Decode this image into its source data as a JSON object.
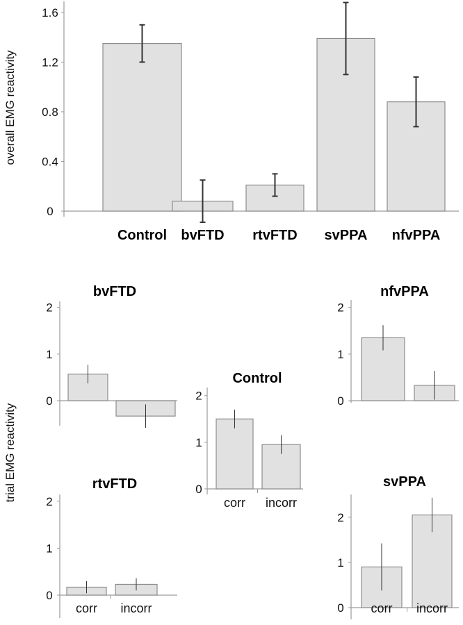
{
  "chart_data": [
    {
      "id": "overall",
      "type": "bar",
      "title": "",
      "xlabel": "",
      "ylabel": "overall EMG reactivity",
      "ylim": [
        -0.1,
        1.7
      ],
      "yticks": [
        0,
        0.4,
        0.8,
        1.2,
        1.6
      ],
      "ytick_labels": [
        "0",
        "0.4",
        "0.8",
        "1.2",
        "1.6"
      ],
      "categories": [
        "Control",
        "bvFTD",
        "rtvFTD",
        "svPPA",
        "nfvPPA"
      ],
      "values": [
        1.35,
        0.08,
        0.21,
        1.39,
        0.88
      ],
      "errors": [
        0.15,
        0.17,
        0.09,
        0.29,
        0.2
      ]
    },
    {
      "id": "bvFTD",
      "type": "bar",
      "title": "bvFTD",
      "ylim": [
        -0.55,
        2.1
      ],
      "yticks": [
        0,
        1,
        2
      ],
      "ytick_labels": [
        "0",
        "1",
        "2"
      ],
      "categories": [
        "corr",
        "incorr"
      ],
      "show_category_labels": false,
      "values": [
        0.57,
        -0.33
      ],
      "errors": [
        0.2,
        0.25
      ]
    },
    {
      "id": "Control",
      "type": "bar",
      "title": "Control",
      "ylim": [
        0,
        2.1
      ],
      "yticks": [
        0,
        1,
        2
      ],
      "ytick_labels": [
        "0",
        "1",
        "2"
      ],
      "categories": [
        "corr",
        "incorr"
      ],
      "show_category_labels": true,
      "values": [
        1.5,
        0.95
      ],
      "errors": [
        0.2,
        0.2
      ]
    },
    {
      "id": "nfvPPA",
      "type": "bar",
      "title": "nfvPPA",
      "ylim": [
        -0.05,
        2.1
      ],
      "yticks": [
        0,
        1,
        2
      ],
      "ytick_labels": [
        "0",
        "1",
        "2"
      ],
      "categories": [
        "corr",
        "incorr"
      ],
      "show_category_labels": false,
      "values": [
        1.35,
        0.33
      ],
      "errors": [
        0.27,
        0.31
      ]
    },
    {
      "id": "rtvFTD",
      "type": "bar",
      "title": "rtvFTD",
      "ylim": [
        0,
        2.1
      ],
      "yticks": [
        0,
        1,
        2
      ],
      "ytick_labels": [
        "0",
        "1",
        "2"
      ],
      "categories": [
        "corr",
        "incorr"
      ],
      "show_category_labels": true,
      "values": [
        0.17,
        0.23
      ],
      "errors": [
        0.13,
        0.13
      ]
    },
    {
      "id": "svPPA",
      "type": "bar",
      "title": "svPPA",
      "ylim": [
        0,
        2.35
      ],
      "yticks": [
        0,
        1,
        2
      ],
      "ytick_labels": [
        "0",
        "1",
        "2"
      ],
      "categories": [
        "corr",
        "incorr"
      ],
      "show_category_labels": true,
      "values": [
        0.9,
        2.05
      ],
      "errors": [
        0.52,
        0.38
      ]
    }
  ],
  "shared_ylabel": "trial EMG reactivity",
  "colors": {
    "bar_fill": "#e1e1e1",
    "bar_stroke": "#8c8c8c",
    "axis": "#9a9a9a",
    "error": "#333333",
    "text": "#111111"
  }
}
